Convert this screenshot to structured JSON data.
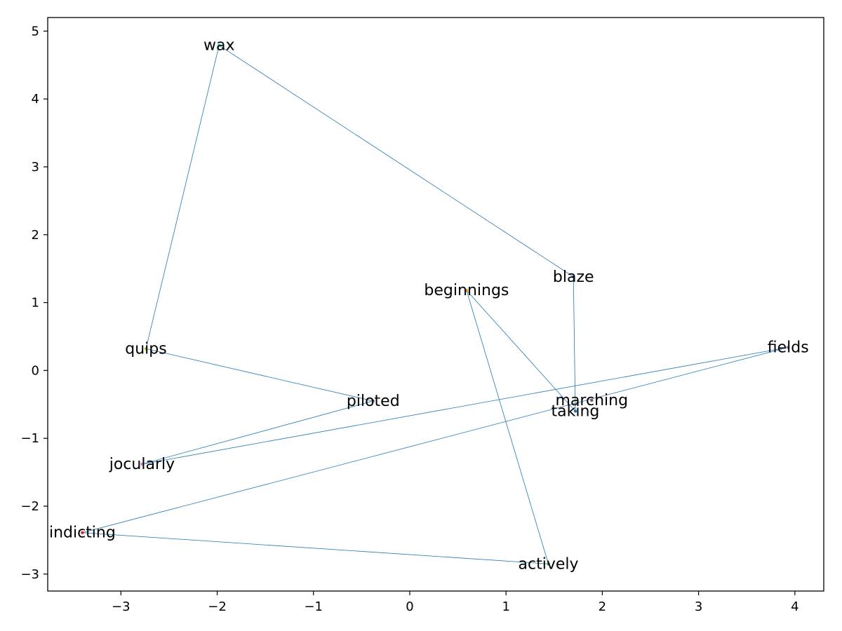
{
  "chart_data": {
    "type": "scatter",
    "title": "",
    "xlabel": "",
    "ylabel": "",
    "xlim": [
      -3.76,
      4.3
    ],
    "ylim": [
      -3.25,
      5.2
    ],
    "xticks": [
      -3,
      -2,
      -1,
      0,
      1,
      2,
      3,
      4
    ],
    "yticks": [
      -3,
      -2,
      -1,
      0,
      1,
      2,
      3,
      4,
      5
    ],
    "grid": false,
    "line_color": "#1f77b4",
    "points": [
      {
        "label": "wax",
        "x": -1.98,
        "y": 4.79,
        "color": "#17becf"
      },
      {
        "label": "blaze",
        "x": 1.7,
        "y": 1.38,
        "color": "#1f77b4"
      },
      {
        "label": "beginnings",
        "x": 0.59,
        "y": 1.18,
        "color": "#ff7f0e"
      },
      {
        "label": "quips",
        "x": -2.74,
        "y": 0.32,
        "color": "#bcbd22"
      },
      {
        "label": "fields",
        "x": 3.93,
        "y": 0.34,
        "color": "#9467bd"
      },
      {
        "label": "piloted",
        "x": -0.38,
        "y": -0.45,
        "color": "#7f7f7f"
      },
      {
        "label": "marching",
        "x": 1.89,
        "y": -0.44,
        "color": "#8c564b"
      },
      {
        "label": "taking",
        "x": 1.72,
        "y": -0.6,
        "color": "#1f77b4"
      },
      {
        "label": "jocularly",
        "x": -2.78,
        "y": -1.38,
        "color": "#e377c2"
      },
      {
        "label": "indicting",
        "x": -3.4,
        "y": -2.39,
        "color": "#d62728"
      },
      {
        "label": "actively",
        "x": 1.44,
        "y": -2.85,
        "color": "#2ca02c"
      }
    ],
    "path": [
      "wax",
      "blaze",
      "taking",
      "beginnings",
      "actively",
      "indicting",
      "fields",
      "jocularly",
      "piloted",
      "quips",
      "wax"
    ]
  }
}
